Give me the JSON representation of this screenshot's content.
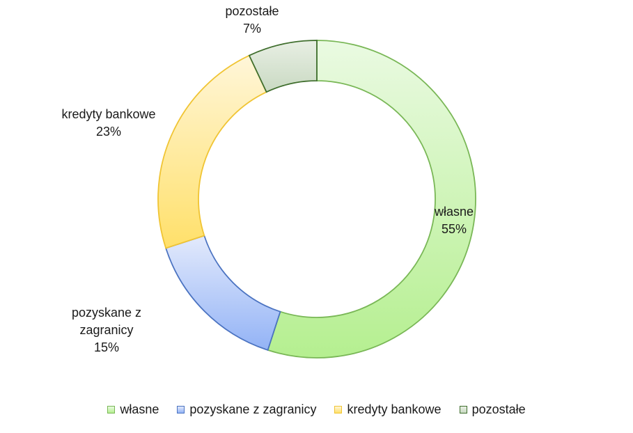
{
  "chart_data": {
    "type": "pie",
    "subtype": "doughnut",
    "categories": [
      "własne",
      "pozyskane z zagranicy",
      "kredyty bankowe",
      "pozostałe"
    ],
    "values": [
      55,
      15,
      23,
      7
    ],
    "value_labels": [
      "55%",
      "15%",
      "23%",
      "7%"
    ],
    "label_lines": [
      [
        "własne",
        "55%"
      ],
      [
        "pozyskane z",
        "zagranicy",
        "15%"
      ],
      [
        "kredyty bankowe",
        "23%"
      ],
      [
        "pozostałe",
        "7%"
      ]
    ],
    "colors": {
      "fill_top": [
        "#eafae2",
        "#e3eafc",
        "#fff6d9",
        "#e8efe4"
      ],
      "fill_bottom": [
        "#b5ef90",
        "#93b3f6",
        "#ffe06a",
        "#c9d9c2"
      ],
      "stroke": [
        "#79b756",
        "#4b73c1",
        "#f0c433",
        "#3f6e2d"
      ]
    },
    "legend_position": "bottom"
  }
}
